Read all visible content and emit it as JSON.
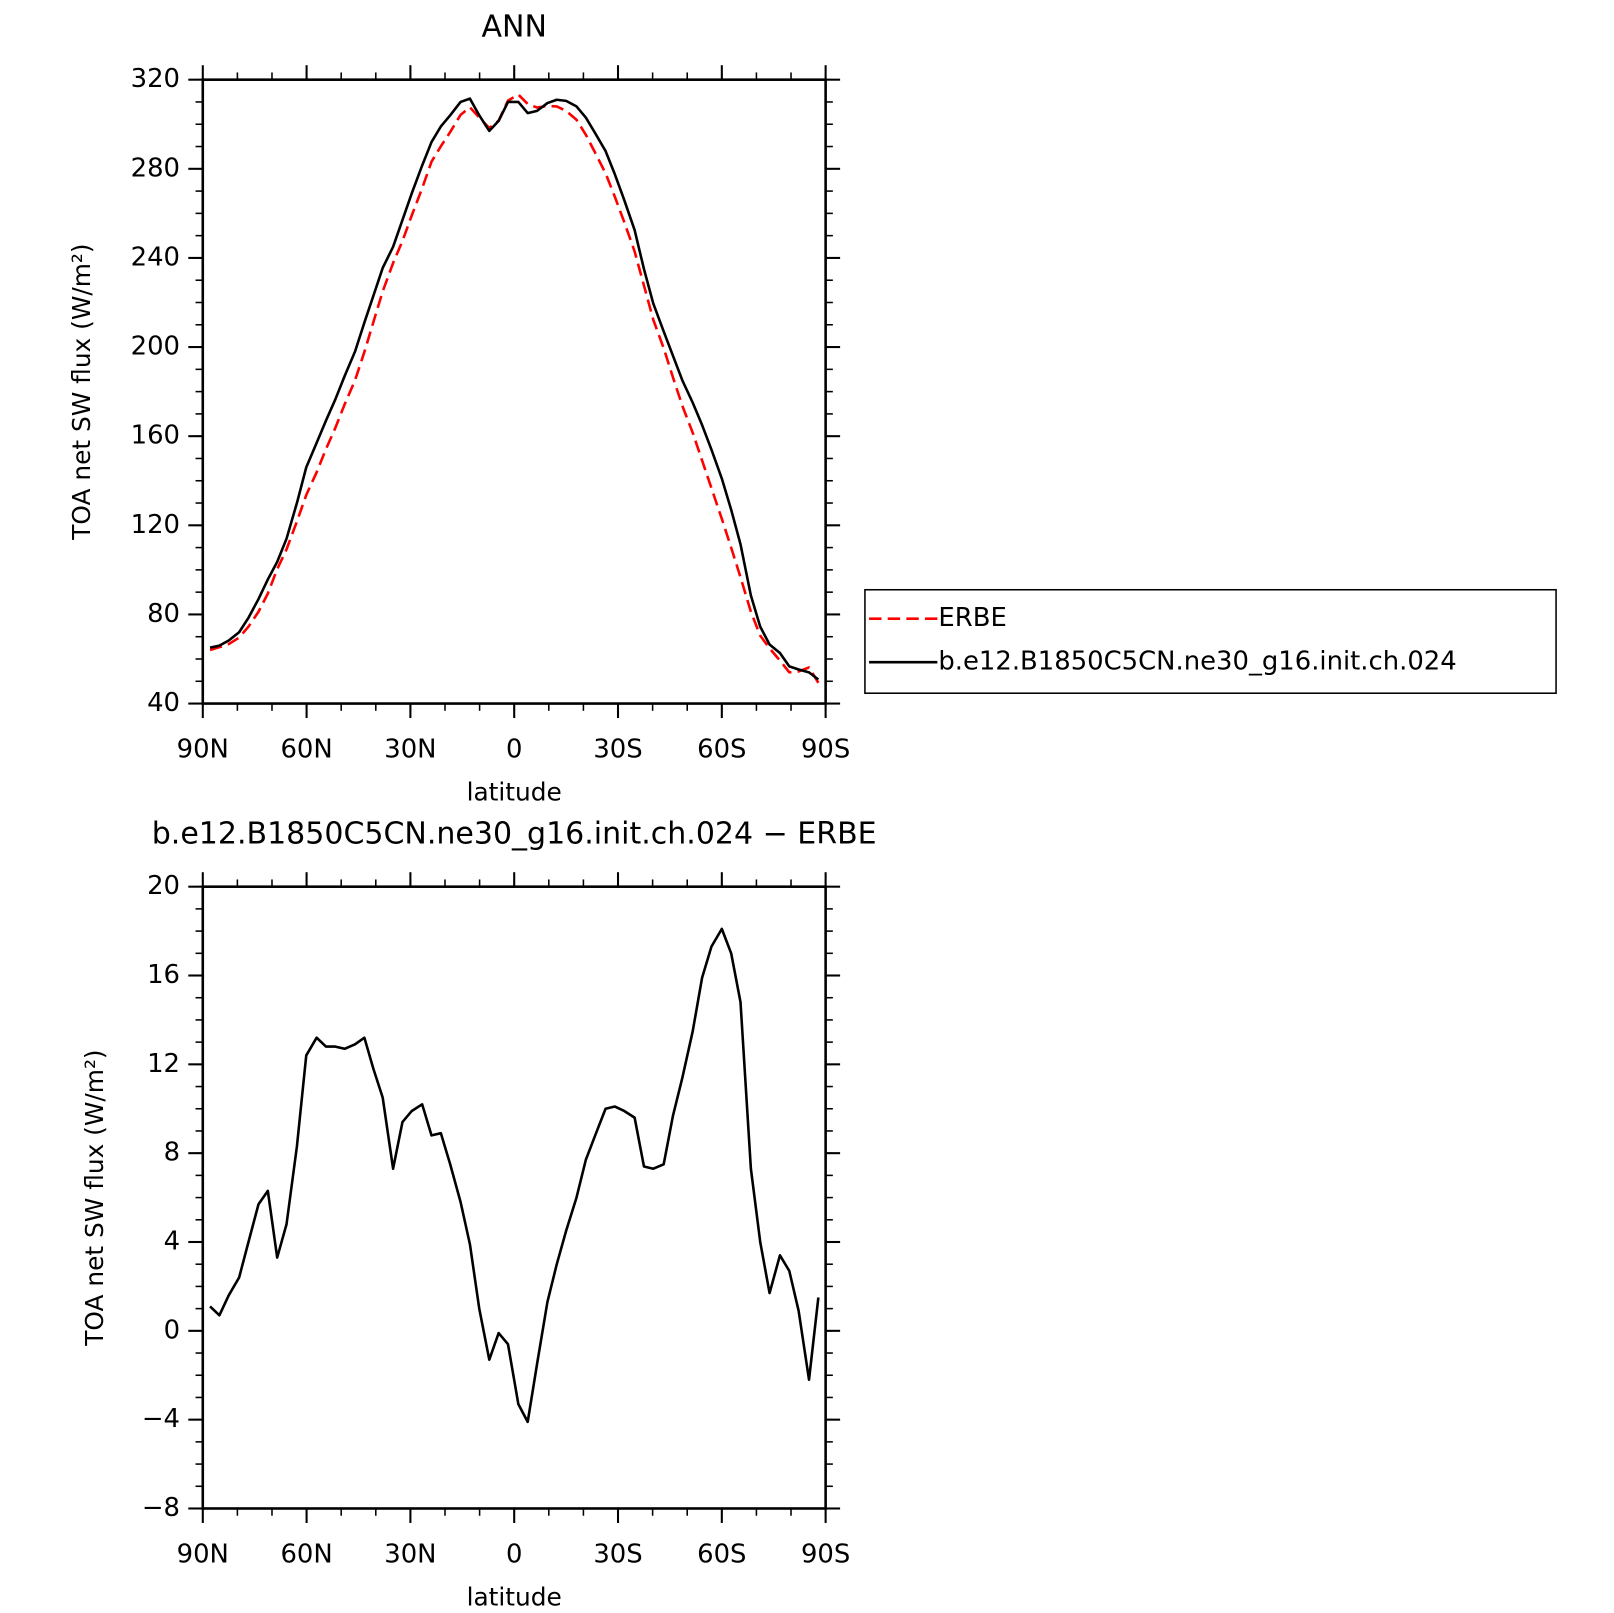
{
  "chart_data": [
    {
      "type": "line",
      "title": "ANN",
      "xlabel": "latitude",
      "ylabel": "TOA net SW flux (W/m²)",
      "xlim": [
        90,
        -90
      ],
      "xticks": [
        {
          "value": 90,
          "label": "90N"
        },
        {
          "value": 60,
          "label": "60N"
        },
        {
          "value": 30,
          "label": "30N"
        },
        0,
        {
          "value": -30,
          "label": "30S"
        },
        {
          "value": -60,
          "label": "60S"
        },
        {
          "value": -90,
          "label": "90S"
        }
      ],
      "ylim": [
        40,
        320
      ],
      "yticks": [
        40,
        80,
        120,
        160,
        200,
        240,
        280,
        320
      ],
      "legend": "right",
      "x": [
        87.9,
        85.2,
        82.5,
        79.5,
        76.8,
        73.9,
        71.2,
        68.5,
        65.8,
        62.8,
        60.1,
        57.1,
        54.4,
        51.7,
        49.0,
        46.0,
        43.3,
        40.7,
        38.0,
        35.0,
        32.3,
        29.6,
        26.6,
        23.9,
        21.2,
        18.5,
        15.5,
        12.8,
        10.1,
        7.2,
        4.5,
        1.8,
        -1.2,
        -3.9,
        -6.6,
        -9.6,
        -12.3,
        -15.0,
        -18.0,
        -20.7,
        -23.4,
        -26.4,
        -29.1,
        -31.8,
        -34.8,
        -37.5,
        -40.2,
        -43.2,
        -45.9,
        -48.6,
        -51.6,
        -54.3,
        -57.0,
        -60.0,
        -62.7,
        -65.4,
        -68.4,
        -71.1,
        -73.8,
        -76.8,
        -79.5,
        -82.2,
        -85.2,
        -87.9
      ],
      "series": [
        {
          "name": "ERBE",
          "color": "#ff0000",
          "dashed": true,
          "values": [
            64.0,
            65.3,
            66.7,
            69.6,
            74.5,
            81.2,
            89.4,
            100.3,
            109.2,
            121.7,
            133.6,
            143.8,
            154.2,
            163.7,
            174.3,
            185.1,
            197.8,
            211.2,
            225,
            237.7,
            247.6,
            259.1,
            271.3,
            283.2,
            290.1,
            296.5,
            304.2,
            307.6,
            303,
            298.3,
            301.6,
            310.6,
            313.3,
            309.1,
            307.5,
            308.2,
            308,
            306,
            302,
            295.3,
            287.2,
            278,
            267.4,
            256.1,
            242.9,
            227.6,
            212.2,
            199.5,
            186.3,
            173.6,
            161.5,
            149.1,
            136.7,
            122.9,
            110,
            96.7,
            81.2,
            70.5,
            64.8,
            59.3,
            54,
            54.4,
            56.2,
            49.3
          ]
        },
        {
          "name": "b.e12.B1850C5CN.ne30_g16.init.ch.024",
          "color": "#000000",
          "dashed": false,
          "values": [
            65.1,
            66,
            68.3,
            72,
            78.5,
            86.9,
            95.7,
            103.6,
            114,
            130,
            146,
            157,
            167,
            176.5,
            187,
            198,
            211,
            223,
            235.5,
            245,
            257,
            269,
            281.5,
            292,
            299,
            304,
            310,
            311.5,
            304,
            297,
            301.5,
            310,
            310,
            305,
            306,
            309.5,
            311,
            310.5,
            308,
            303,
            296,
            288,
            277.5,
            266,
            252.5,
            235,
            219.5,
            207,
            196,
            185,
            175,
            165,
            154,
            141,
            127,
            111.5,
            88.5,
            74.5,
            66.5,
            62.7,
            56.7,
            55.3,
            54,
            50.8
          ]
        }
      ]
    },
    {
      "type": "line",
      "title": "b.e12.B1850C5CN.ne30_g16.init.ch.024 − ERBE",
      "xlabel": "latitude",
      "ylabel": "TOA net SW flux (W/m²)",
      "xlim": [
        90,
        -90
      ],
      "xticks": [
        {
          "value": 90,
          "label": "90N"
        },
        {
          "value": 60,
          "label": "60N"
        },
        {
          "value": 30,
          "label": "30N"
        },
        0,
        {
          "value": -30,
          "label": "30S"
        },
        {
          "value": -60,
          "label": "60S"
        },
        {
          "value": -90,
          "label": "90S"
        }
      ],
      "ylim": [
        -8,
        20
      ],
      "yticks": [
        {
          "value": -8,
          "label": "−8"
        },
        {
          "value": -4,
          "label": "−4"
        },
        0,
        4,
        8,
        12,
        16,
        20
      ],
      "x": [
        87.9,
        85.2,
        82.5,
        79.5,
        76.8,
        73.9,
        71.2,
        68.5,
        65.8,
        62.8,
        60.1,
        57.1,
        54.4,
        51.7,
        49.0,
        46.0,
        43.3,
        40.7,
        38.0,
        35.0,
        32.3,
        29.6,
        26.6,
        23.9,
        21.2,
        18.5,
        15.5,
        12.8,
        10.1,
        7.2,
        4.5,
        1.8,
        -1.2,
        -3.9,
        -6.6,
        -9.6,
        -12.3,
        -15.0,
        -18.0,
        -20.7,
        -23.4,
        -26.4,
        -29.1,
        -31.8,
        -34.8,
        -37.5,
        -40.2,
        -43.2,
        -45.9,
        -48.6,
        -51.6,
        -54.3,
        -57.0,
        -60.0,
        -62.7,
        -65.4,
        -68.4,
        -71.1,
        -73.8,
        -76.8,
        -79.5,
        -82.2,
        -85.2,
        -87.9
      ],
      "series": [
        {
          "color": "#000000",
          "dashed": false,
          "values": [
            1.1,
            0.7,
            1.6,
            2.4,
            4.0,
            5.7,
            6.3,
            3.3,
            4.8,
            8.3,
            12.4,
            13.2,
            12.8,
            12.8,
            12.7,
            12.9,
            13.2,
            11.8,
            10.5,
            7.3,
            9.4,
            9.9,
            10.2,
            8.8,
            8.9,
            7.5,
            5.8,
            3.9,
            1.0,
            -1.3,
            -0.1,
            -0.6,
            -3.3,
            -4.1,
            -1.5,
            1.3,
            3.0,
            4.5,
            6.0,
            7.7,
            8.8,
            10.0,
            10.1,
            9.9,
            9.6,
            7.4,
            7.3,
            7.5,
            9.7,
            11.4,
            13.5,
            15.9,
            17.3,
            18.1,
            17.0,
            14.8,
            7.3,
            4.0,
            1.7,
            3.4,
            2.7,
            0.9,
            -2.2,
            1.5
          ]
        }
      ]
    }
  ]
}
